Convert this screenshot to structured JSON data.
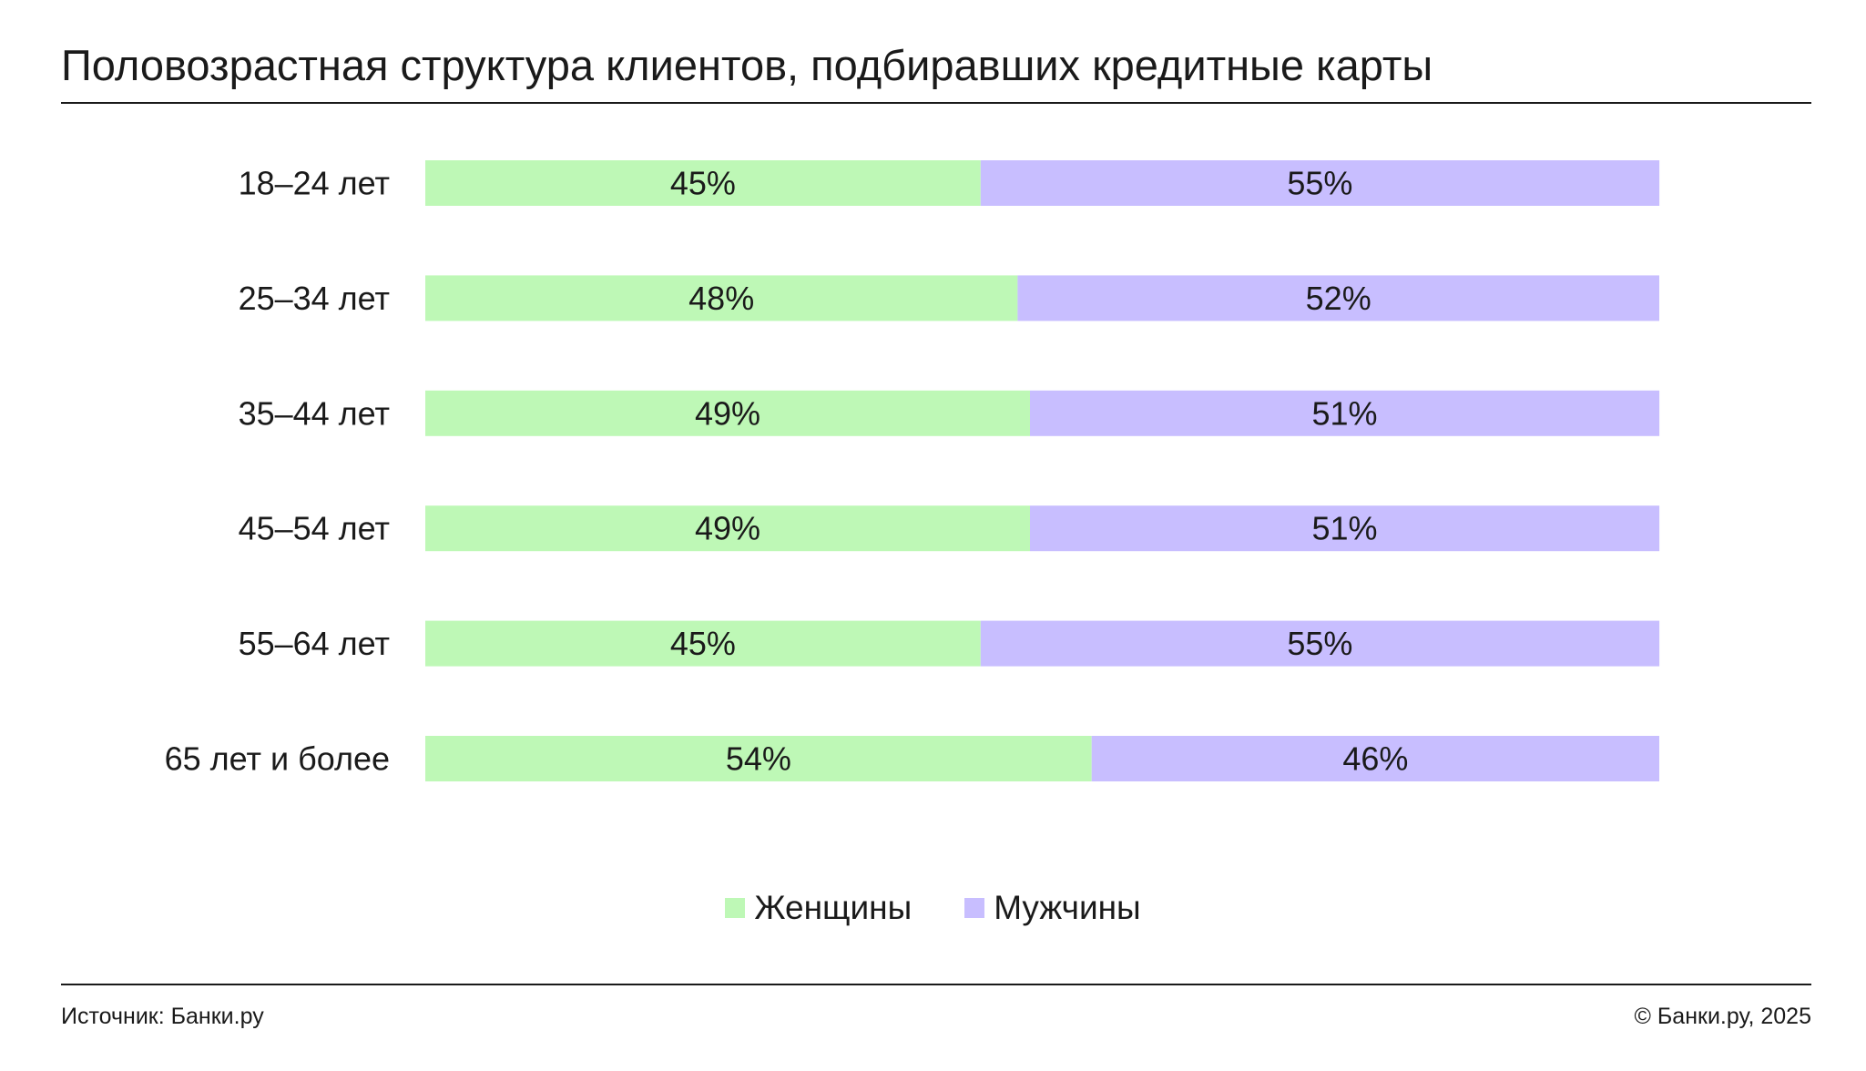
{
  "title": "Половозрастная структура клиентов, подбиравших кредитные карты",
  "source": "Источник: Банки.ру",
  "copyright": "© Банки.ру, 2025",
  "colors": {
    "women": "#bef8b6",
    "men": "#c8beff",
    "text": "#1a1a1a"
  },
  "chart_data": {
    "type": "bar",
    "orientation": "horizontal",
    "stacked": true,
    "value_unit": "%",
    "categories": [
      "18–24 лет",
      "25–34 лет",
      "35–44 лет",
      "45–54 лет",
      "55–64 лет",
      "65 лет и более"
    ],
    "series": [
      {
        "name": "Женщины",
        "color": "#bef8b6",
        "values": [
          45,
          48,
          49,
          49,
          45,
          54
        ]
      },
      {
        "name": "Мужчины",
        "color": "#c8beff",
        "values": [
          55,
          52,
          51,
          51,
          55,
          46
        ]
      }
    ],
    "data_labels": [
      [
        "45%",
        "48%",
        "49%",
        "49%",
        "45%",
        "54%"
      ],
      [
        "55%",
        "52%",
        "51%",
        "51%",
        "55%",
        "46%"
      ]
    ],
    "xlim": [
      0,
      100
    ],
    "grid": false,
    "legend_position": "bottom-center"
  }
}
